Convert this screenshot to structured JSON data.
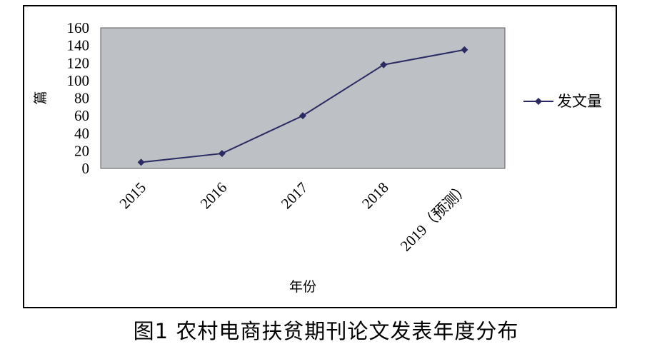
{
  "caption": "图1  农村电商扶贫期刊论文发表年度分布",
  "chart_data": {
    "type": "line",
    "categories": [
      "2015",
      "2016",
      "2017",
      "2018",
      "2019（预测）"
    ],
    "series": [
      {
        "name": "发文量",
        "values": [
          7,
          17,
          60,
          118,
          135
        ],
        "color": "#2b2b63"
      }
    ],
    "ylim": [
      0,
      160
    ],
    "yticks": [
      0,
      20,
      40,
      60,
      80,
      100,
      120,
      140,
      160
    ],
    "xlabel": "年份",
    "ylabel": "篇",
    "plot_background": "#bdc0c4",
    "grid": false,
    "legend_position": "right"
  }
}
